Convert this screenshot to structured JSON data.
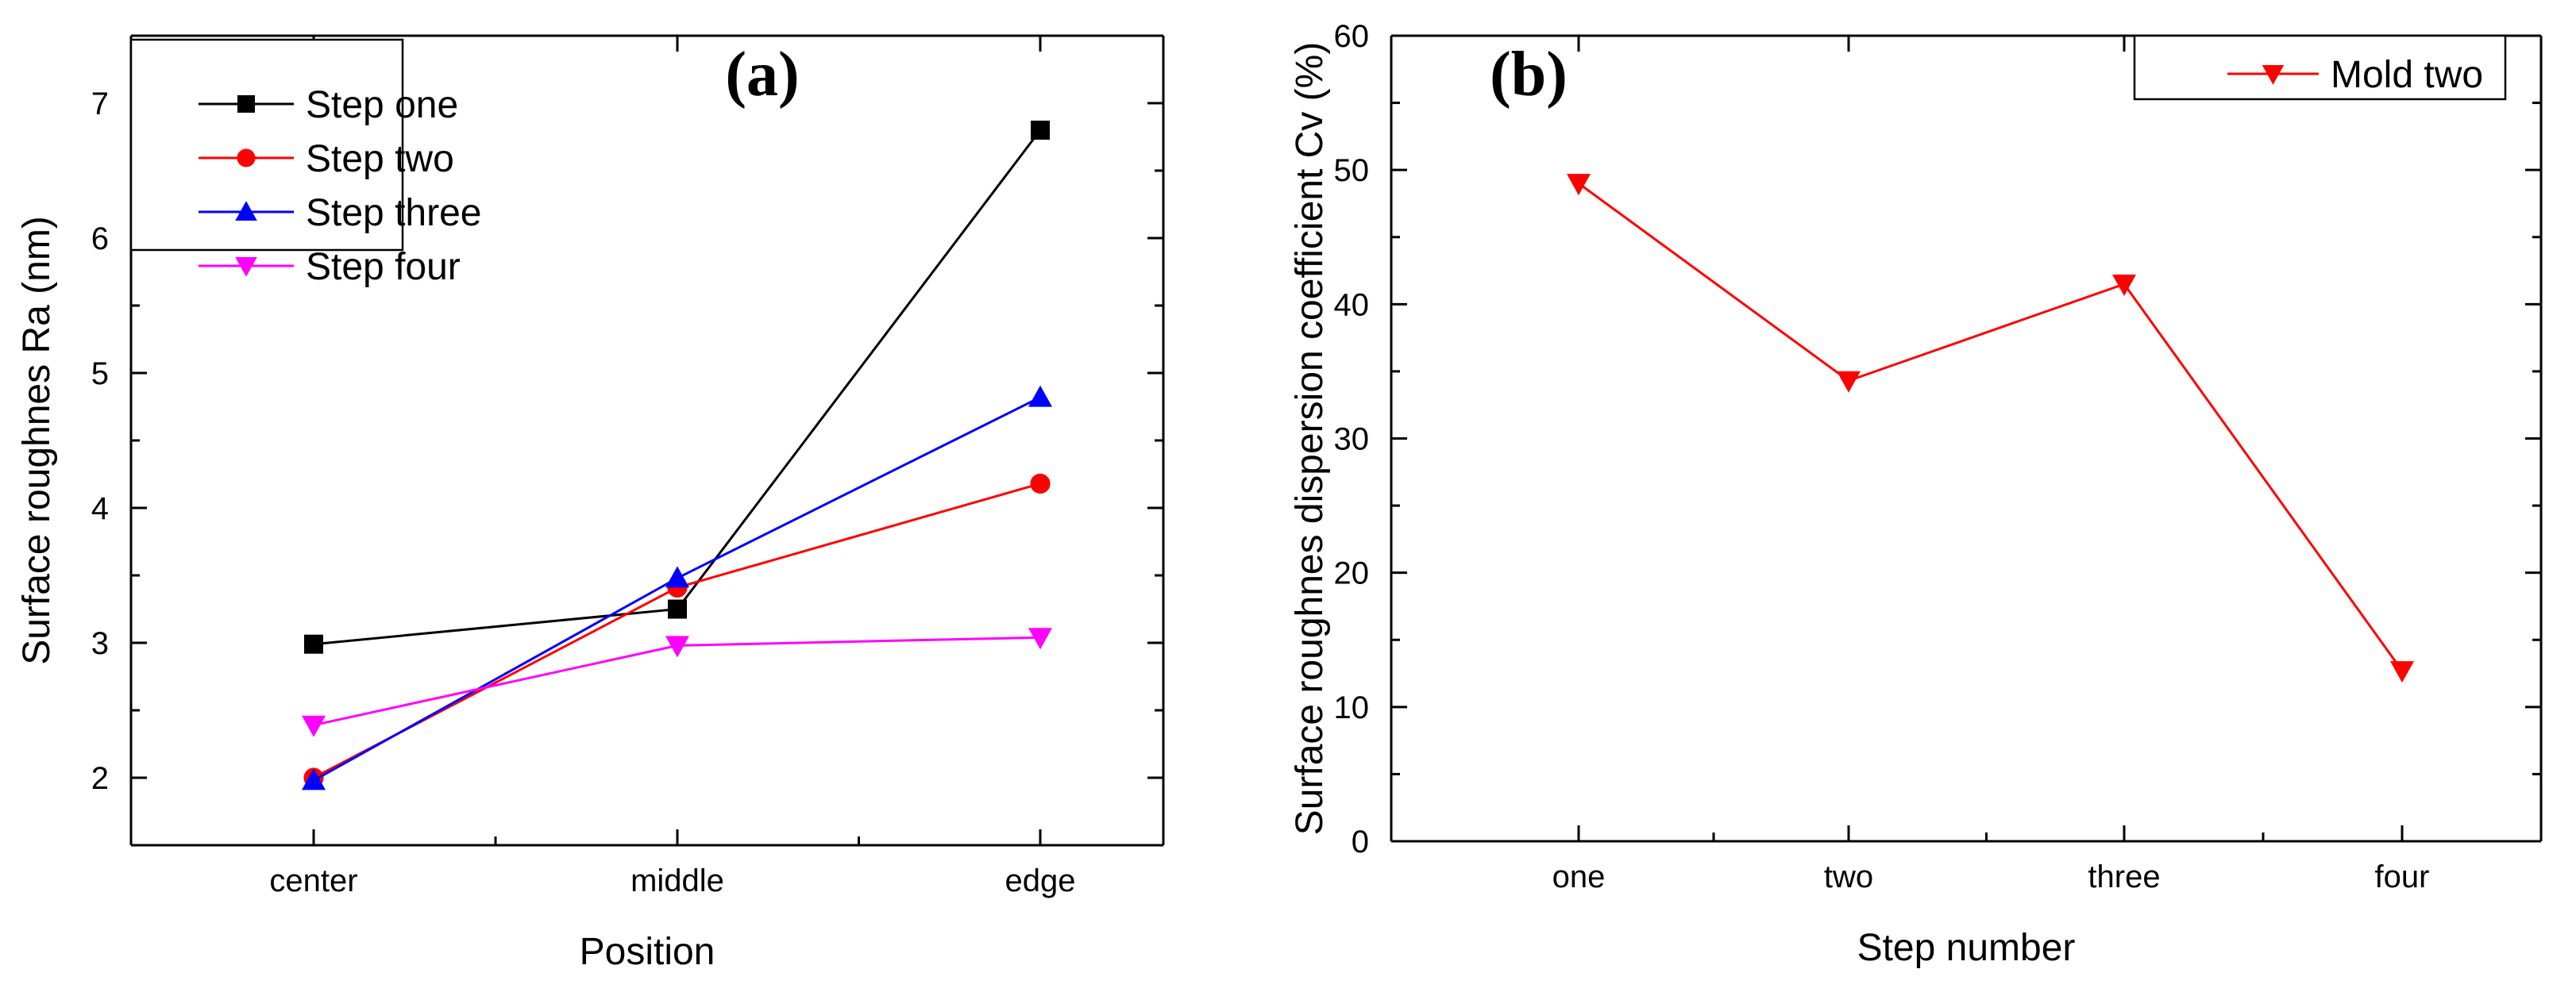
{
  "chart_data": [
    {
      "type": "line",
      "panel_label": "(a)",
      "categories": [
        "center",
        "middle",
        "edge"
      ],
      "xlabel": "Position",
      "ylabel": "Surface roughnes Ra (nm)",
      "ylim": [
        1.5,
        7.5
      ],
      "yticks": [
        2,
        3,
        4,
        5,
        6,
        7
      ],
      "grid": false,
      "legend_position": "top-left",
      "series": [
        {
          "name": "Step one",
          "marker": "square",
          "color": "#000000",
          "values": [
            2.99,
            3.25,
            6.8
          ]
        },
        {
          "name": "Step two",
          "marker": "circle",
          "color": "#ff0000",
          "values": [
            2.0,
            3.41,
            4.18
          ]
        },
        {
          "name": "Step three",
          "marker": "triangle-up",
          "color": "#0000ff",
          "values": [
            1.98,
            3.48,
            4.82
          ]
        },
        {
          "name": "Step four",
          "marker": "triangle-down",
          "color": "#ff00ff",
          "values": [
            2.39,
            2.98,
            3.04
          ]
        }
      ]
    },
    {
      "type": "line",
      "panel_label": "(b)",
      "categories": [
        "one",
        "two",
        "three",
        "four"
      ],
      "xlabel": "Step number",
      "ylabel": "Surface roughnes  dispersion coefficient Cv (%)",
      "ylim": [
        0,
        60
      ],
      "yticks": [
        0,
        10,
        20,
        30,
        40,
        50,
        60
      ],
      "grid": false,
      "legend_position": "top-right",
      "series": [
        {
          "name": "Mold two",
          "marker": "triangle-down",
          "color": "#ff0000",
          "values": [
            49.0,
            34.3,
            41.5,
            12.7
          ]
        }
      ]
    }
  ]
}
